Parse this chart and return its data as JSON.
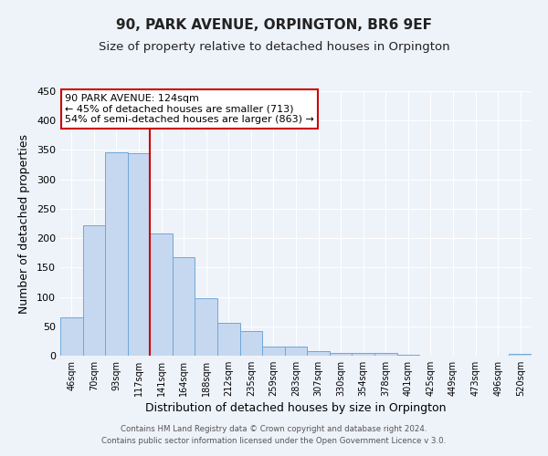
{
  "title": "90, PARK AVENUE, ORPINGTON, BR6 9EF",
  "subtitle": "Size of property relative to detached houses in Orpington",
  "xlabel": "Distribution of detached houses by size in Orpington",
  "ylabel": "Number of detached properties",
  "bar_labels": [
    "46sqm",
    "70sqm",
    "93sqm",
    "117sqm",
    "141sqm",
    "164sqm",
    "188sqm",
    "212sqm",
    "235sqm",
    "259sqm",
    "283sqm",
    "307sqm",
    "330sqm",
    "354sqm",
    "378sqm",
    "401sqm",
    "425sqm",
    "449sqm",
    "473sqm",
    "496sqm",
    "520sqm"
  ],
  "bar_values": [
    65,
    222,
    346,
    345,
    208,
    167,
    97,
    56,
    42,
    16,
    15,
    7,
    5,
    4,
    4,
    2,
    0,
    0,
    0,
    0,
    3
  ],
  "bar_color": "#c5d8f0",
  "bar_edge_color": "#6fa8d8",
  "vline_x": 3.5,
  "vline_color": "#cc0000",
  "annotation_title": "90 PARK AVENUE: 124sqm",
  "annotation_line1": "← 45% of detached houses are smaller (713)",
  "annotation_line2": "54% of semi-detached houses are larger (863) →",
  "annotation_box_color": "#ffffff",
  "annotation_box_edge": "#cc0000",
  "ylim": [
    0,
    450
  ],
  "yticks": [
    0,
    50,
    100,
    150,
    200,
    250,
    300,
    350,
    400,
    450
  ],
  "footer1": "Contains HM Land Registry data © Crown copyright and database right 2024.",
  "footer2": "Contains public sector information licensed under the Open Government Licence v 3.0.",
  "bg_color": "#eef2f9",
  "title_fontsize": 11,
  "subtitle_fontsize": 9.5
}
